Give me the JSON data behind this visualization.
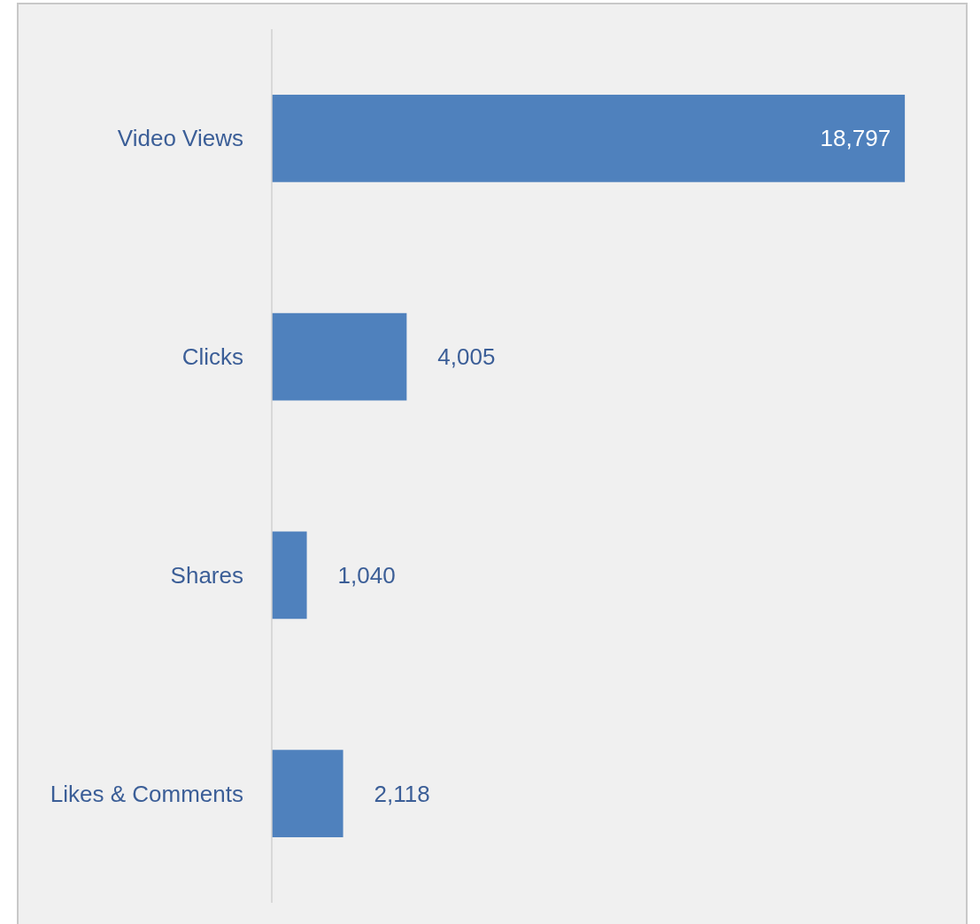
{
  "chart_data": {
    "type": "bar",
    "orientation": "horizontal",
    "categories": [
      "Video Views",
      "Clicks",
      "Shares",
      "Likes & Comments"
    ],
    "values": [
      18797,
      4005,
      1040,
      2118
    ],
    "value_labels": [
      "18,797",
      "4,005",
      "1,040",
      "2,118"
    ],
    "color": "#4f81bd"
  }
}
